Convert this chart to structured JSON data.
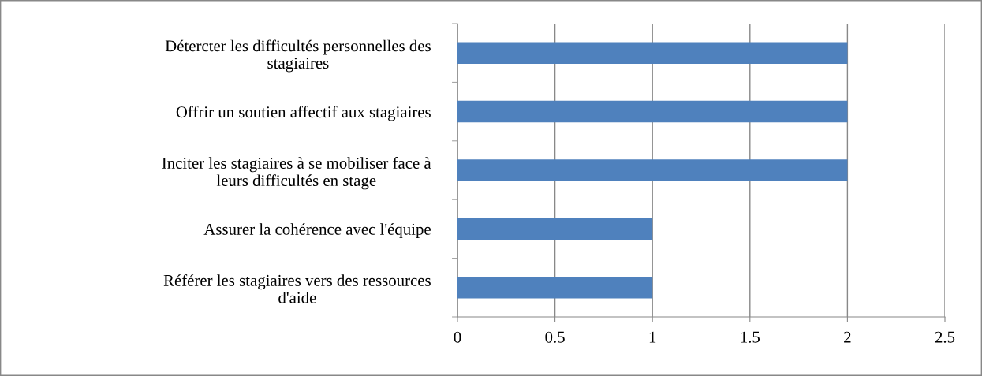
{
  "chart_data": {
    "type": "bar",
    "orientation": "horizontal",
    "categories": [
      "Détercter les difficultés personnelles des\nstagiaires",
      "Offrir un soutien affectif aux stagiaires",
      "Inciter les stagiaires à se mobiliser face à\nleurs difficultés en stage",
      "Assurer la cohérence avec l'équipe",
      "Référer les stagiaires vers des ressources\nd'aide"
    ],
    "values": [
      2,
      2,
      2,
      1,
      1
    ],
    "color": "#4f81bd",
    "xlim": [
      0,
      2.5
    ],
    "xticks": [
      0,
      0.5,
      1,
      1.5,
      2,
      2.5
    ],
    "grid": "x",
    "legend": false
  }
}
